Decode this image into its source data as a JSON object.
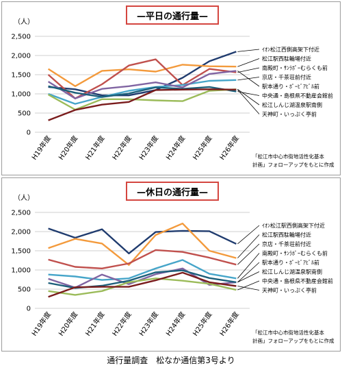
{
  "chart_data": [
    {
      "type": "line",
      "title": "—平日の通行量—",
      "ylabel": "（人）",
      "categories": [
        "H19年度",
        "H20年度",
        "H21年度",
        "H22年度",
        "H23年度",
        "H24年度",
        "H25年度",
        "H26年度"
      ],
      "ylim": [
        0,
        2500
      ],
      "yticks": [
        "0",
        "500",
        "1,000",
        "1,500",
        "2,000",
        "2,500"
      ],
      "grid": true,
      "note": [
        "「松江市中心市街地活性化基本",
        "計画」フォローアップをもとに作成"
      ],
      "series": [
        {
          "name": "ｲｵﾝ松江西側高架下付近",
          "color": "#1f3b6e",
          "values": [
            1180,
            1120,
            960,
            960,
            1100,
            1420,
            1850,
            2100
          ]
        },
        {
          "name": "松江駅西駐輪場付近",
          "color": "#f39a3c",
          "values": [
            1650,
            1200,
            1600,
            1640,
            1580,
            1760,
            1720,
            1710
          ]
        },
        {
          "name": "南殿町・ｻﾝﾗﾎﾟｰむらくも前",
          "color": "#c0504d",
          "values": [
            1500,
            880,
            1250,
            1740,
            1900,
            1230,
            1650,
            1560
          ]
        },
        {
          "name": "京店・千茶荘前付近",
          "color": "#46a5c9",
          "values": [
            1000,
            740,
            920,
            1080,
            1180,
            1230,
            1340,
            1360
          ]
        },
        {
          "name": "駅本通り・ﾎﾟｰﾋﾞｱﾋﾞﾙ前",
          "color": "#8064a2",
          "values": [
            1320,
            880,
            1130,
            1200,
            1300,
            1170,
            1520,
            1600
          ]
        },
        {
          "name": "中央通・島根県不動産会館前",
          "color": "#1c5f7a",
          "values": [
            1200,
            1030,
            920,
            1010,
            1170,
            1130,
            1180,
            1060
          ]
        },
        {
          "name": "松江しんじ湖温泉駅南側",
          "color": "#9bbb59",
          "values": [
            980,
            590,
            860,
            860,
            830,
            810,
            1080,
            1120
          ]
        },
        {
          "name": "天神町・いっぷく亭前",
          "color": "#7a1c1c",
          "values": [
            310,
            580,
            720,
            790,
            1100,
            1110,
            1120,
            1110
          ]
        }
      ]
    },
    {
      "type": "line",
      "title": "—休日の通行量—",
      "ylabel": "（人）",
      "categories": [
        "H19年度",
        "H20年度",
        "H21年度",
        "H22年度",
        "H23年度",
        "H24年度",
        "H25年度",
        "H26年度"
      ],
      "ylim": [
        0,
        2500
      ],
      "yticks": [
        "0",
        "500",
        "1,000",
        "1,500",
        "2,000",
        "2,500"
      ],
      "grid": true,
      "note": [
        "「松江市中心市街地活性化基本",
        "計画」フォローアップをもとに作成"
      ],
      "series": [
        {
          "name": "ｲｵﾝ松江駅西側高架下付近",
          "color": "#1f3b6e",
          "values": [
            2080,
            1840,
            2060,
            1430,
            1990,
            2020,
            2010,
            1680
          ]
        },
        {
          "name": "松江駅西駐輪場付近",
          "color": "#f39a3c",
          "values": [
            1570,
            1810,
            1690,
            1130,
            1910,
            2210,
            1500,
            1310
          ]
        },
        {
          "name": "京店・千茶荘前付近",
          "color": "#c0504d",
          "values": [
            1270,
            1080,
            1040,
            1170,
            1520,
            1470,
            1320,
            1140
          ]
        },
        {
          "name": "南殿町・ｻﾝﾗﾎﾟｰむらくも前",
          "color": "#46a5c9",
          "values": [
            880,
            830,
            740,
            780,
            1040,
            1260,
            900,
            780
          ]
        },
        {
          "name": "駅本通り・ﾎﾟｰﾋﾞｱﾋﾞﾙ前",
          "color": "#8064a2",
          "values": [
            770,
            540,
            880,
            630,
            890,
            1040,
            610,
            680
          ]
        },
        {
          "name": "松江しんじ湖温泉駅南側",
          "color": "#1c5f7a",
          "values": [
            660,
            530,
            590,
            720,
            940,
            990,
            790,
            680
          ]
        },
        {
          "name": "中央通・島根県不動産会館前",
          "color": "#9bbb59",
          "values": [
            450,
            350,
            450,
            680,
            780,
            720,
            640,
            480
          ]
        },
        {
          "name": "天神町・いっぷく亭前",
          "color": "#7a1c1c",
          "values": [
            300,
            550,
            560,
            560,
            730,
            930,
            680,
            580
          ]
        }
      ]
    }
  ],
  "caption": "通行量調査　松なか通信第3号より"
}
